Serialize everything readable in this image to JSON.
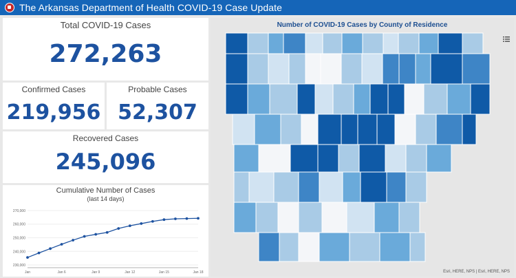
{
  "header": {
    "title": "The Arkansas Department of Health COVID-19 Case Update",
    "logo": "ade-seal-icon"
  },
  "total": {
    "label": "Total COVID-19 Cases",
    "value": "272,263"
  },
  "confirmed": {
    "label": "Confirmed Cases",
    "value": "219,956"
  },
  "probable": {
    "label": "Probable Cases",
    "value": "52,307"
  },
  "recovered": {
    "label": "Recovered Cases",
    "value": "245,096"
  },
  "map": {
    "title": "Number of COVID-19 Cases by County of Residence",
    "attribution": "Esri, HERE, NPS | Esri, HERE, NPS"
  },
  "chart_data": {
    "type": "line",
    "title": "Cumulative Number of Cases",
    "subtitle": "(last 14 days)",
    "x": [
      "Jan 3",
      "Jan 4",
      "Jan 5",
      "Jan 6",
      "Jan 7",
      "Jan 8",
      "Jan 9",
      "Jan 10",
      "Jan 11",
      "Jan 12",
      "Jan 13",
      "Jan 14",
      "Jan 15",
      "Jan 16",
      "Jan 17",
      "Jan 18"
    ],
    "values": [
      235500,
      238800,
      242000,
      245200,
      248200,
      251000,
      252500,
      253900,
      256800,
      258800,
      260400,
      262000,
      263300,
      263900,
      264100,
      264300
    ],
    "tick_labels": [
      "Jan",
      "Jan 6",
      "Jan 9",
      "Jan 12",
      "Jan 15",
      "Jan 18"
    ],
    "tick_index": [
      0,
      3,
      6,
      9,
      12,
      15
    ],
    "y_ticks": [
      "230,000",
      "240,000",
      "250,000",
      "260,000",
      "270,000"
    ],
    "y_tick_values": [
      230000,
      240000,
      250000,
      260000,
      270000
    ],
    "ylim": [
      228000,
      272000
    ]
  }
}
